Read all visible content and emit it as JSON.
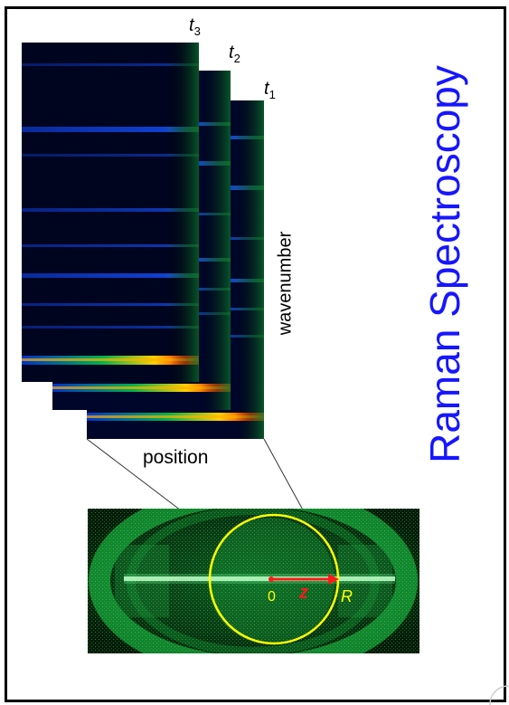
{
  "title": "Raman Spectroscopy",
  "axis": {
    "y_label": "wavenumber",
    "x_label": "position"
  },
  "spectra_frames": [
    {
      "time_label": "t",
      "time_index": "1"
    },
    {
      "time_label": "t",
      "time_index": "2"
    },
    {
      "time_label": "t",
      "time_index": "3"
    }
  ],
  "photo_annotations": {
    "origin": "0",
    "axis": "z",
    "radius": "R"
  },
  "colors": {
    "title": "#1616ff",
    "circle": "#ffff00",
    "arrow": "#ff1a1a",
    "photo_glow": "#1fd44a"
  }
}
